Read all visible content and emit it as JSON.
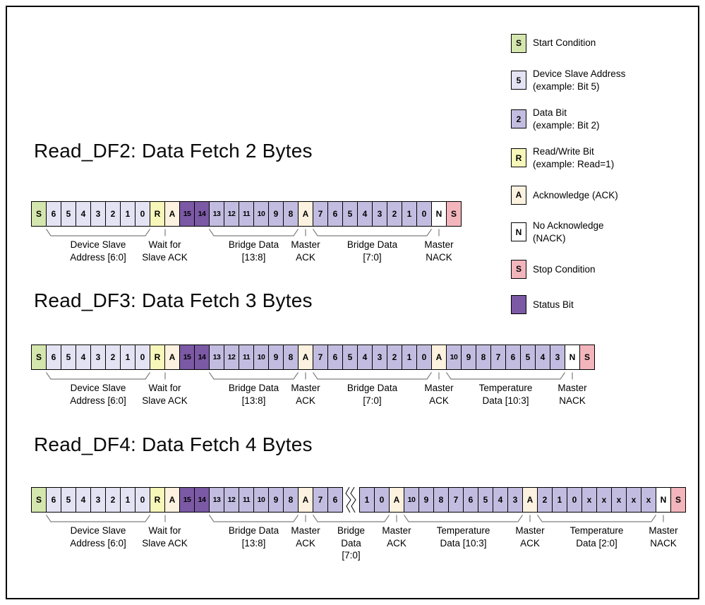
{
  "colors": {
    "start": "#d4e6ae",
    "addr": "#e4e3f4",
    "data": "#c2bde0",
    "rw": "#f7f7ba",
    "ack": "#fcf2df",
    "nack": "#ffffff",
    "stop": "#f3b5bc",
    "status": "#7b59a5"
  },
  "legend": {
    "items": [
      {
        "symbol": "S",
        "type": "start",
        "lines": [
          "Start Condition"
        ]
      },
      {
        "symbol": "5",
        "type": "addr",
        "lines": [
          "Device Slave Address",
          "(example: Bit 5)"
        ]
      },
      {
        "symbol": "2",
        "type": "data",
        "lines": [
          "Data Bit",
          "(example: Bit 2)"
        ]
      },
      {
        "symbol": "R",
        "type": "rw",
        "lines": [
          "Read/Write Bit",
          "(example: Read=1)"
        ]
      },
      {
        "symbol": "A",
        "type": "ack",
        "lines": [
          "Acknowledge (ACK)"
        ]
      },
      {
        "symbol": "N",
        "type": "nack",
        "lines": [
          "No Acknowledge",
          "(NACK)"
        ]
      },
      {
        "symbol": "S",
        "type": "stop",
        "lines": [
          "Stop Condition"
        ]
      },
      {
        "symbol": "",
        "type": "status",
        "lines": [
          "Status Bit"
        ]
      }
    ]
  },
  "diagrams": [
    {
      "title": "Read_DF2: Data Fetch 2 Bytes",
      "cells": [
        [
          "S",
          "start"
        ],
        [
          "6",
          "addr"
        ],
        [
          "5",
          "addr"
        ],
        [
          "4",
          "addr"
        ],
        [
          "3",
          "addr"
        ],
        [
          "2",
          "addr"
        ],
        [
          "1",
          "addr"
        ],
        [
          "0",
          "addr"
        ],
        [
          "R",
          "rw"
        ],
        [
          "A",
          "ack"
        ],
        [
          "15",
          "status"
        ],
        [
          "14",
          "status"
        ],
        [
          "13",
          "data"
        ],
        [
          "12",
          "data"
        ],
        [
          "11",
          "data"
        ],
        [
          "10",
          "data"
        ],
        [
          "9",
          "data"
        ],
        [
          "8",
          "data"
        ],
        [
          "A",
          "ack"
        ],
        [
          "7",
          "data"
        ],
        [
          "6",
          "data"
        ],
        [
          "5",
          "data"
        ],
        [
          "4",
          "data"
        ],
        [
          "3",
          "data"
        ],
        [
          "2",
          "data"
        ],
        [
          "1",
          "data"
        ],
        [
          "0",
          "data"
        ],
        [
          "N",
          "nack"
        ],
        [
          "S",
          "stop"
        ]
      ],
      "annotations": [
        {
          "lines": [
            "Device Slave",
            "Address [6:0]"
          ],
          "from": 1,
          "to": 7,
          "mark": "brace"
        },
        {
          "lines": [
            "Wait for",
            "Slave ACK"
          ],
          "from": 8,
          "to": 9,
          "mark": "tick"
        },
        {
          "lines": [
            "Bridge Data",
            "[13:8]"
          ],
          "from": 12,
          "to": 17,
          "mark": "brace"
        },
        {
          "lines": [
            "Master",
            "ACK"
          ],
          "from": 18,
          "to": 18,
          "mark": "tick"
        },
        {
          "lines": [
            "Bridge Data",
            "[7:0]"
          ],
          "from": 19,
          "to": 26,
          "mark": "brace"
        },
        {
          "lines": [
            "Master",
            "NACK"
          ],
          "from": 27,
          "to": 27,
          "mark": "tick"
        }
      ]
    },
    {
      "title": "Read_DF3: Data Fetch 3 Bytes",
      "cells": [
        [
          "S",
          "start"
        ],
        [
          "6",
          "addr"
        ],
        [
          "5",
          "addr"
        ],
        [
          "4",
          "addr"
        ],
        [
          "3",
          "addr"
        ],
        [
          "2",
          "addr"
        ],
        [
          "1",
          "addr"
        ],
        [
          "0",
          "addr"
        ],
        [
          "R",
          "rw"
        ],
        [
          "A",
          "ack"
        ],
        [
          "15",
          "status"
        ],
        [
          "14",
          "status"
        ],
        [
          "13",
          "data"
        ],
        [
          "12",
          "data"
        ],
        [
          "11",
          "data"
        ],
        [
          "10",
          "data"
        ],
        [
          "9",
          "data"
        ],
        [
          "8",
          "data"
        ],
        [
          "A",
          "ack"
        ],
        [
          "7",
          "data"
        ],
        [
          "6",
          "data"
        ],
        [
          "5",
          "data"
        ],
        [
          "4",
          "data"
        ],
        [
          "3",
          "data"
        ],
        [
          "2",
          "data"
        ],
        [
          "1",
          "data"
        ],
        [
          "0",
          "data"
        ],
        [
          "A",
          "ack"
        ],
        [
          "10",
          "data"
        ],
        [
          "9",
          "data"
        ],
        [
          "8",
          "data"
        ],
        [
          "7",
          "data"
        ],
        [
          "6",
          "data"
        ],
        [
          "5",
          "data"
        ],
        [
          "4",
          "data"
        ],
        [
          "3",
          "data"
        ],
        [
          "N",
          "nack"
        ],
        [
          "S",
          "stop"
        ]
      ],
      "annotations": [
        {
          "lines": [
            "Device Slave",
            "Address [6:0]"
          ],
          "from": 1,
          "to": 7,
          "mark": "brace"
        },
        {
          "lines": [
            "Wait for",
            "Slave ACK"
          ],
          "from": 8,
          "to": 9,
          "mark": "tick"
        },
        {
          "lines": [
            "Bridge Data",
            "[13:8]"
          ],
          "from": 12,
          "to": 17,
          "mark": "brace"
        },
        {
          "lines": [
            "Master",
            "ACK"
          ],
          "from": 18,
          "to": 18,
          "mark": "tick"
        },
        {
          "lines": [
            "Bridge Data",
            "[7:0]"
          ],
          "from": 19,
          "to": 26,
          "mark": "brace"
        },
        {
          "lines": [
            "Master",
            "ACK"
          ],
          "from": 27,
          "to": 27,
          "mark": "tick"
        },
        {
          "lines": [
            "Temperature",
            "Data [10:3]"
          ],
          "from": 28,
          "to": 35,
          "mark": "brace"
        },
        {
          "lines": [
            "Master",
            "NACK"
          ],
          "from": 36,
          "to": 36,
          "mark": "tick"
        }
      ]
    },
    {
      "title": "Read_DF4: Data Fetch 4 Bytes",
      "cells": [
        [
          "S",
          "start"
        ],
        [
          "6",
          "addr"
        ],
        [
          "5",
          "addr"
        ],
        [
          "4",
          "addr"
        ],
        [
          "3",
          "addr"
        ],
        [
          "2",
          "addr"
        ],
        [
          "1",
          "addr"
        ],
        [
          "0",
          "addr"
        ],
        [
          "R",
          "rw"
        ],
        [
          "A",
          "ack"
        ],
        [
          "15",
          "status"
        ],
        [
          "14",
          "status"
        ],
        [
          "13",
          "data"
        ],
        [
          "12",
          "data"
        ],
        [
          "11",
          "data"
        ],
        [
          "10",
          "data"
        ],
        [
          "9",
          "data"
        ],
        [
          "8",
          "data"
        ],
        [
          "A",
          "ack"
        ],
        [
          "7",
          "data"
        ],
        [
          "6",
          "data"
        ],
        [
          "",
          "break"
        ],
        [
          "1",
          "data"
        ],
        [
          "0",
          "data"
        ],
        [
          "A",
          "ack"
        ],
        [
          "10",
          "data"
        ],
        [
          "9",
          "data"
        ],
        [
          "8",
          "data"
        ],
        [
          "7",
          "data"
        ],
        [
          "6",
          "data"
        ],
        [
          "5",
          "data"
        ],
        [
          "4",
          "data"
        ],
        [
          "3",
          "data"
        ],
        [
          "A",
          "ack"
        ],
        [
          "2",
          "data"
        ],
        [
          "1",
          "data"
        ],
        [
          "0",
          "data"
        ],
        [
          "x",
          "data"
        ],
        [
          "x",
          "data"
        ],
        [
          "x",
          "data"
        ],
        [
          "x",
          "data"
        ],
        [
          "x",
          "data"
        ],
        [
          "N",
          "nack"
        ],
        [
          "S",
          "stop"
        ]
      ],
      "annotations": [
        {
          "lines": [
            "Device Slave",
            "Address [6:0]"
          ],
          "from": 1,
          "to": 7,
          "mark": "brace"
        },
        {
          "lines": [
            "Wait for",
            "Slave ACK"
          ],
          "from": 8,
          "to": 9,
          "mark": "tick"
        },
        {
          "lines": [
            "Bridge Data",
            "[13:8]"
          ],
          "from": 12,
          "to": 17,
          "mark": "brace"
        },
        {
          "lines": [
            "Master",
            "ACK"
          ],
          "from": 18,
          "to": 18,
          "mark": "tick"
        },
        {
          "lines": [
            "Bridge",
            "Data",
            "[7:0]"
          ],
          "from": 19,
          "to": 23,
          "mark": "brace"
        },
        {
          "lines": [
            "Master",
            "ACK"
          ],
          "from": 24,
          "to": 24,
          "mark": "tick"
        },
        {
          "lines": [
            "Temperature",
            "Data [10:3]"
          ],
          "from": 25,
          "to": 32,
          "mark": "brace"
        },
        {
          "lines": [
            "Master",
            "ACK"
          ],
          "from": 33,
          "to": 33,
          "mark": "tick"
        },
        {
          "lines": [
            "Temperature",
            "Data [2:0]"
          ],
          "from": 34,
          "to": 41,
          "mark": "brace"
        },
        {
          "lines": [
            "Master",
            "NACK"
          ],
          "from": 42,
          "to": 42,
          "mark": "tick"
        }
      ]
    }
  ]
}
